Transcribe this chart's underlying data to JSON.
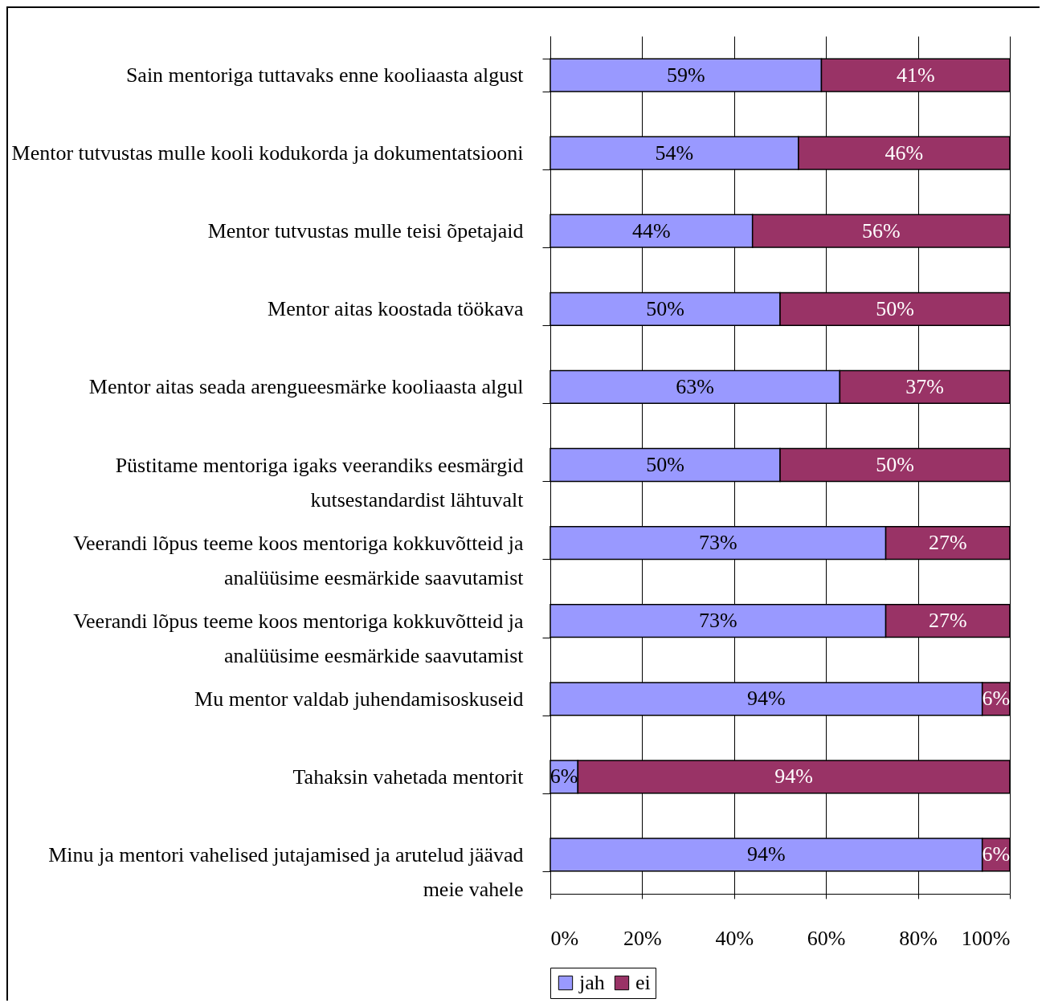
{
  "chart_data": {
    "type": "bar",
    "orientation": "horizontal",
    "stacked": true,
    "categories": [
      "Sain mentoriga tuttavaks enne kooliaasta algust",
      "Mentor tutvustas mulle kooli kodukorda ja dokumentatsiooni",
      "Mentor tutvustas mulle teisi õpetajaid",
      "Mentor aitas koostada töökava",
      "Mentor aitas seada arengueesmärke kooliaasta algul",
      "Püstitame mentoriga igaks veerandiks eesmärgid kutsestandardist lähtuvalt",
      "Veerandi lõpus teeme koos mentoriga kokkuvõtteid ja analüüsime eesmärkide saavutamist",
      "Veerandi lõpus teeme koos mentoriga kokkuvõtteid ja analüüsime eesmärkide saavutamist",
      "Mu mentor valdab juhendamisoskuseid",
      "Tahaksin vahetada mentorit",
      "Minu ja mentori vahelised jutajamised ja arutelud jäävad meie vahele"
    ],
    "series": [
      {
        "name": "jah",
        "color": "#9999ff",
        "values": [
          59,
          54,
          44,
          50,
          63,
          50,
          73,
          73,
          94,
          6,
          94
        ],
        "value_labels": [
          "59%",
          "54%",
          "44%",
          "50%",
          "63%",
          "50%",
          "73%",
          "73%",
          "94%",
          "6%",
          "94%"
        ]
      },
      {
        "name": "ei",
        "color": "#993366",
        "values": [
          41,
          46,
          56,
          50,
          37,
          50,
          27,
          27,
          6,
          94,
          6
        ],
        "value_labels": [
          "41%",
          "46%",
          "56%",
          "50%",
          "37%",
          "50%",
          "27%",
          "27%",
          "6%",
          "94%",
          "6%"
        ]
      }
    ],
    "xlim": [
      0,
      100
    ],
    "xticks": [
      {
        "value": 0,
        "label": "0%"
      },
      {
        "value": 20,
        "label": "20%"
      },
      {
        "value": 40,
        "label": "40%"
      },
      {
        "value": 60,
        "label": "60%"
      },
      {
        "value": 80,
        "label": "80%"
      },
      {
        "value": 100,
        "label": "100%"
      }
    ],
    "grid": "x",
    "legend": "bottom"
  }
}
